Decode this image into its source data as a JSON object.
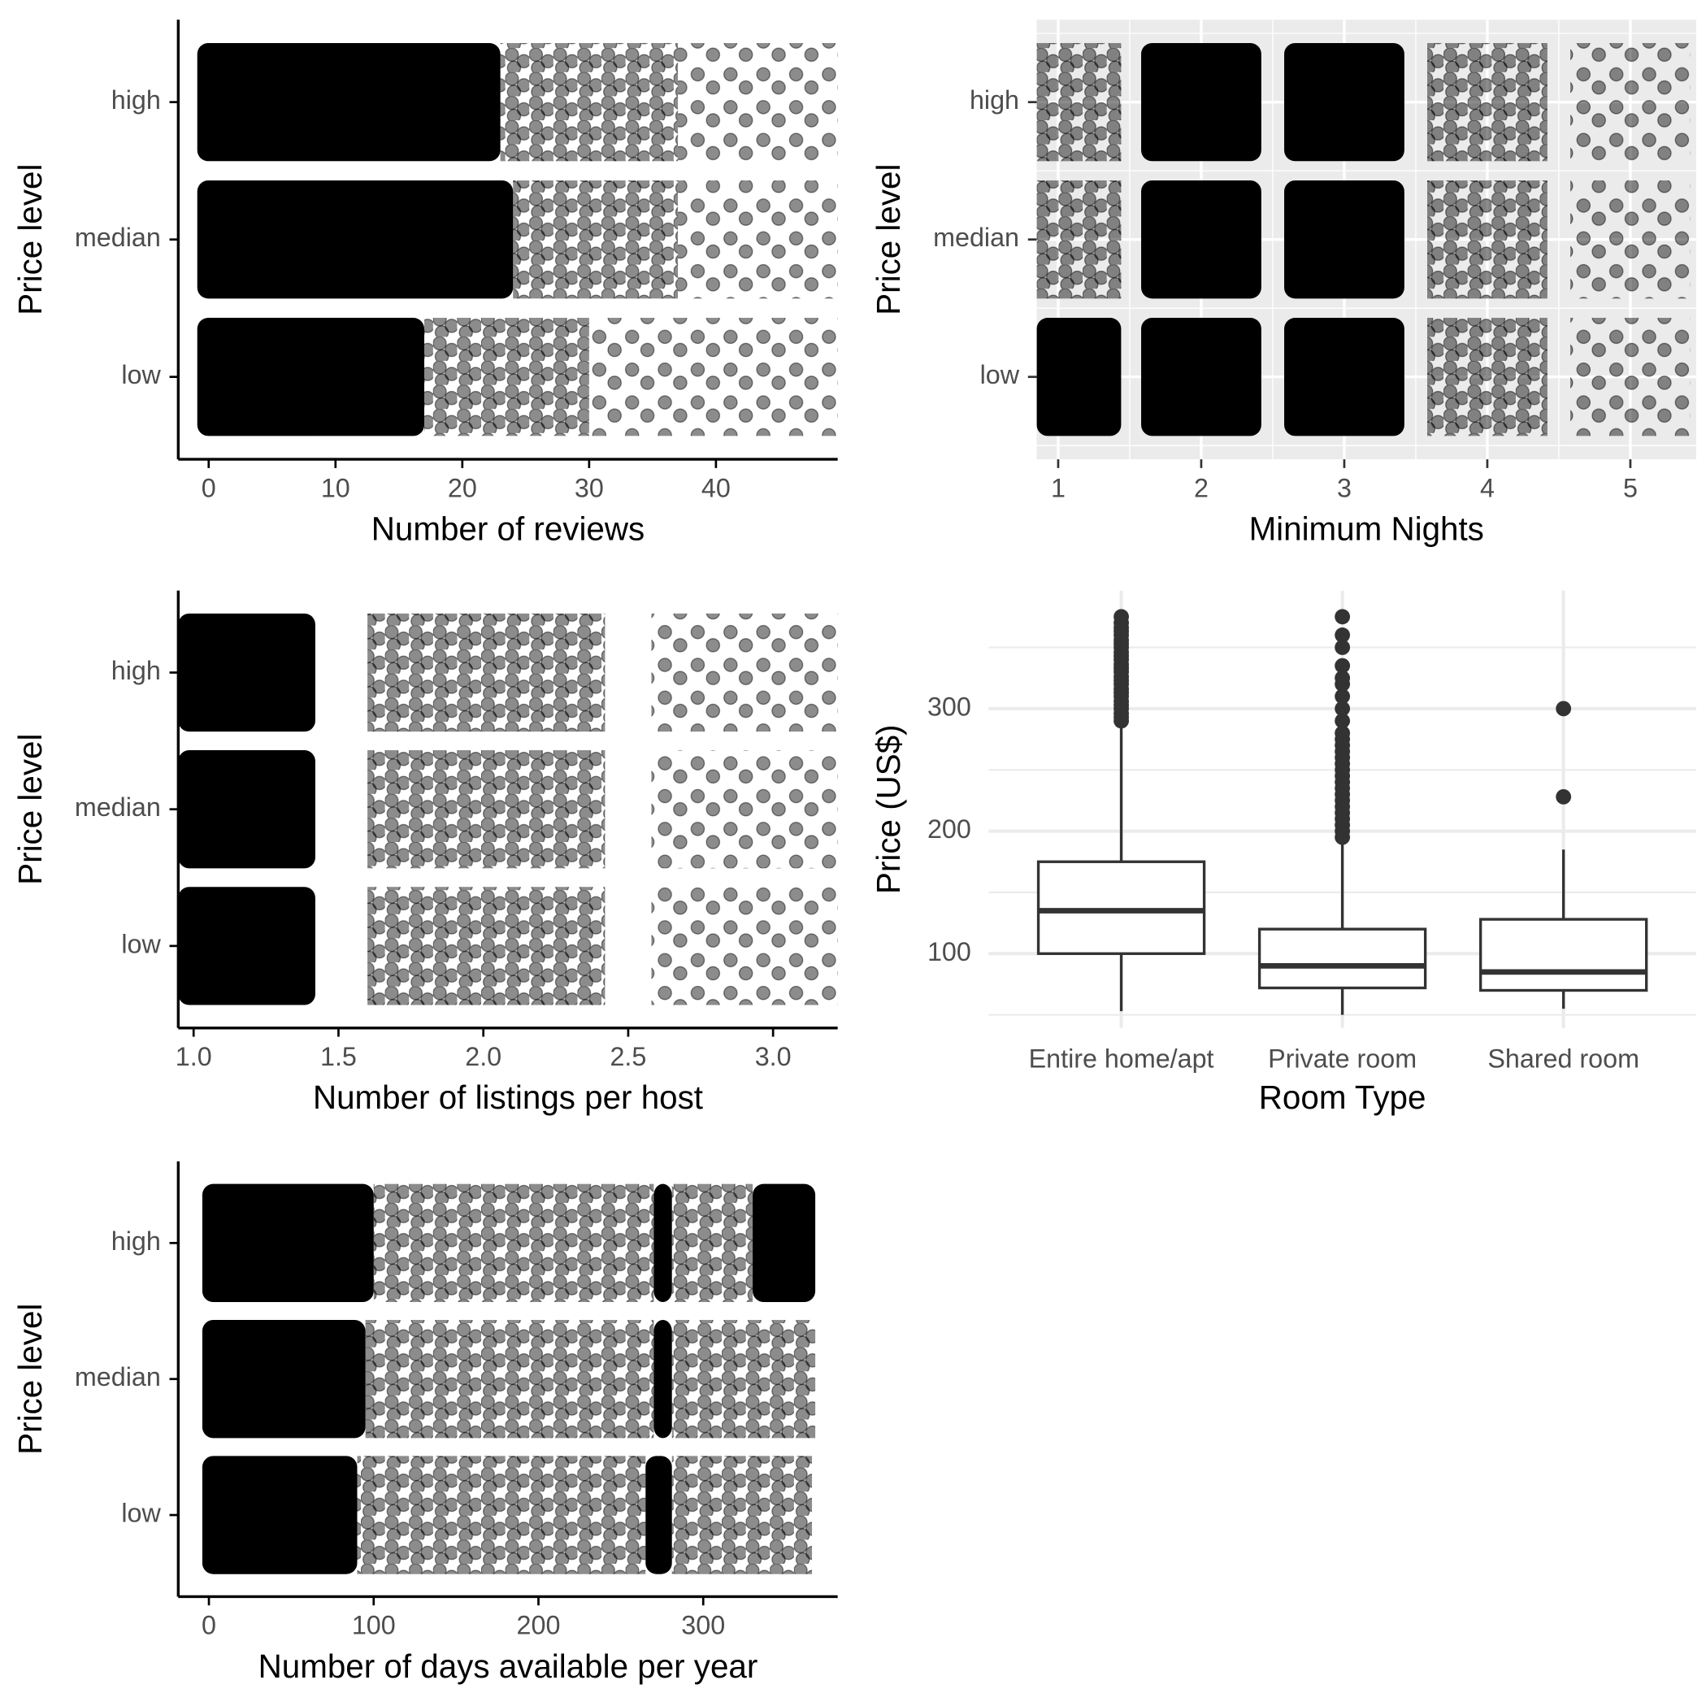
{
  "chart_data": [
    {
      "type": "jitter",
      "x_label": "Number of reviews",
      "y_label": "Price level",
      "theme": "classic",
      "categories": [
        "high",
        "median",
        "low"
      ],
      "xlim": [
        -2.4,
        49.6
      ],
      "xticks": [
        0,
        10,
        20,
        30,
        40
      ],
      "rows": [
        {
          "segments": [
            {
              "from": -0.9,
              "to": 23,
              "density": "dense"
            },
            {
              "from": 23,
              "to": 37,
              "density": "medium"
            },
            {
              "from": 37,
              "to": 49.6,
              "density": "sparse"
            }
          ]
        },
        {
          "segments": [
            {
              "from": -0.9,
              "to": 24,
              "density": "dense"
            },
            {
              "from": 24,
              "to": 37,
              "density": "medium"
            },
            {
              "from": 37,
              "to": 49.6,
              "density": "sparse"
            }
          ]
        },
        {
          "segments": [
            {
              "from": -0.9,
              "to": 17,
              "density": "dense"
            },
            {
              "from": 17,
              "to": 30,
              "density": "medium"
            },
            {
              "from": 30,
              "to": 49.6,
              "density": "sparse"
            }
          ]
        }
      ]
    },
    {
      "type": "jitter",
      "x_label": "Minimum Nights",
      "y_label": "Price level",
      "theme": "grey",
      "categories": [
        "high",
        "median",
        "low"
      ],
      "xlim": [
        0.85,
        5.46
      ],
      "xticks": [
        1,
        2,
        3,
        4,
        5
      ],
      "rows": [
        {
          "segments": [
            {
              "from": 0.85,
              "to": 1.44,
              "density": "medium"
            },
            {
              "from": 1.58,
              "to": 2.42,
              "density": "dense"
            },
            {
              "from": 2.58,
              "to": 3.42,
              "density": "dense"
            },
            {
              "from": 3.58,
              "to": 4.42,
              "density": "medium"
            },
            {
              "from": 4.58,
              "to": 5.42,
              "density": "sparse"
            }
          ]
        },
        {
          "segments": [
            {
              "from": 0.85,
              "to": 1.44,
              "density": "medium"
            },
            {
              "from": 1.58,
              "to": 2.42,
              "density": "dense"
            },
            {
              "from": 2.58,
              "to": 3.42,
              "density": "dense"
            },
            {
              "from": 3.58,
              "to": 4.42,
              "density": "medium"
            },
            {
              "from": 4.58,
              "to": 5.42,
              "density": "sparse"
            }
          ]
        },
        {
          "segments": [
            {
              "from": 0.85,
              "to": 1.44,
              "density": "dense"
            },
            {
              "from": 1.58,
              "to": 2.42,
              "density": "dense"
            },
            {
              "from": 2.58,
              "to": 3.42,
              "density": "dense"
            },
            {
              "from": 3.58,
              "to": 4.42,
              "density": "medium"
            },
            {
              "from": 4.58,
              "to": 5.42,
              "density": "sparse"
            }
          ]
        }
      ]
    },
    {
      "type": "jitter",
      "x_label": "Number of listings per host",
      "y_label": "Price level",
      "theme": "classic",
      "categories": [
        "high",
        "median",
        "low"
      ],
      "xlim": [
        0.947,
        3.223
      ],
      "xticks": [
        {
          "value": 1,
          "label": "1.0"
        },
        1.5,
        {
          "value": 2,
          "label": "2.0"
        },
        2.5,
        {
          "value": 3,
          "label": "3.0"
        }
      ],
      "rows": [
        {
          "segments": [
            {
              "from": 0.947,
              "to": 1.42,
              "density": "dense"
            },
            {
              "from": 1.6,
              "to": 2.42,
              "density": "medium"
            },
            {
              "from": 2.58,
              "to": 3.223,
              "density": "sparse"
            }
          ]
        },
        {
          "segments": [
            {
              "from": 0.947,
              "to": 1.42,
              "density": "dense"
            },
            {
              "from": 1.6,
              "to": 2.42,
              "density": "medium"
            },
            {
              "from": 2.58,
              "to": 3.223,
              "density": "sparse"
            }
          ]
        },
        {
          "segments": [
            {
              "from": 0.947,
              "to": 1.42,
              "density": "dense"
            },
            {
              "from": 1.6,
              "to": 2.42,
              "density": "medium"
            },
            {
              "from": 2.58,
              "to": 3.223,
              "density": "sparse"
            }
          ]
        }
      ]
    },
    {
      "type": "box",
      "x_label": "Room Type",
      "y_label": "Price (US$)",
      "categories": [
        "Entire home/apt",
        "Private room",
        "Shared room"
      ],
      "ylim": [
        39.3,
        396.4
      ],
      "yticks": [
        100,
        200,
        300
      ],
      "minor_yticks": [
        50,
        150,
        250,
        350
      ],
      "boxes": [
        {
          "low": 53,
          "q1": 100,
          "median": 135,
          "q3": 175,
          "high": 288,
          "outliers": [
            290,
            293,
            296,
            300,
            303,
            306,
            310,
            313,
            316,
            320,
            323,
            326,
            330,
            333,
            336,
            340,
            343,
            346,
            350,
            353,
            356,
            360,
            363,
            366,
            370,
            375
          ]
        },
        {
          "low": 50,
          "q1": 72,
          "median": 90,
          "q3": 120,
          "high": 193,
          "outliers": [
            195,
            200,
            205,
            210,
            215,
            220,
            225,
            230,
            235,
            240,
            245,
            250,
            255,
            260,
            265,
            270,
            275,
            280,
            290,
            300,
            310,
            320,
            325,
            335,
            350,
            360,
            375
          ]
        },
        {
          "low": 55,
          "q1": 70,
          "median": 85,
          "q3": 128,
          "high": 185,
          "outliers": [
            228,
            300
          ]
        }
      ]
    },
    {
      "type": "jitter",
      "x_label": "Number of days available per year",
      "y_label": "Price level",
      "theme": "classic",
      "categories": [
        "high",
        "median",
        "low"
      ],
      "xlim": [
        -18.6,
        381.6
      ],
      "xticks": [
        0,
        100,
        200,
        300
      ],
      "rows": [
        {
          "segments": [
            {
              "from": -4,
              "to": 100,
              "density": "dense"
            },
            {
              "from": 100,
              "to": 270,
              "density": "medium"
            },
            {
              "from": 270,
              "to": 281,
              "density": "dense"
            },
            {
              "from": 281,
              "to": 330,
              "density": "medium"
            },
            {
              "from": 330,
              "to": 368,
              "density": "dense"
            }
          ]
        },
        {
          "segments": [
            {
              "from": -4,
              "to": 95,
              "density": "dense"
            },
            {
              "from": 95,
              "to": 270,
              "density": "medium"
            },
            {
              "from": 270,
              "to": 281,
              "density": "dense"
            },
            {
              "from": 281,
              "to": 368,
              "density": "medium"
            }
          ]
        },
        {
          "segments": [
            {
              "from": -4,
              "to": 90,
              "density": "dense"
            },
            {
              "from": 90,
              "to": 265,
              "density": "medium"
            },
            {
              "from": 265,
              "to": 281,
              "density": "dense"
            },
            {
              "from": 281,
              "to": 366,
              "density": "medium"
            }
          ]
        }
      ]
    }
  ]
}
